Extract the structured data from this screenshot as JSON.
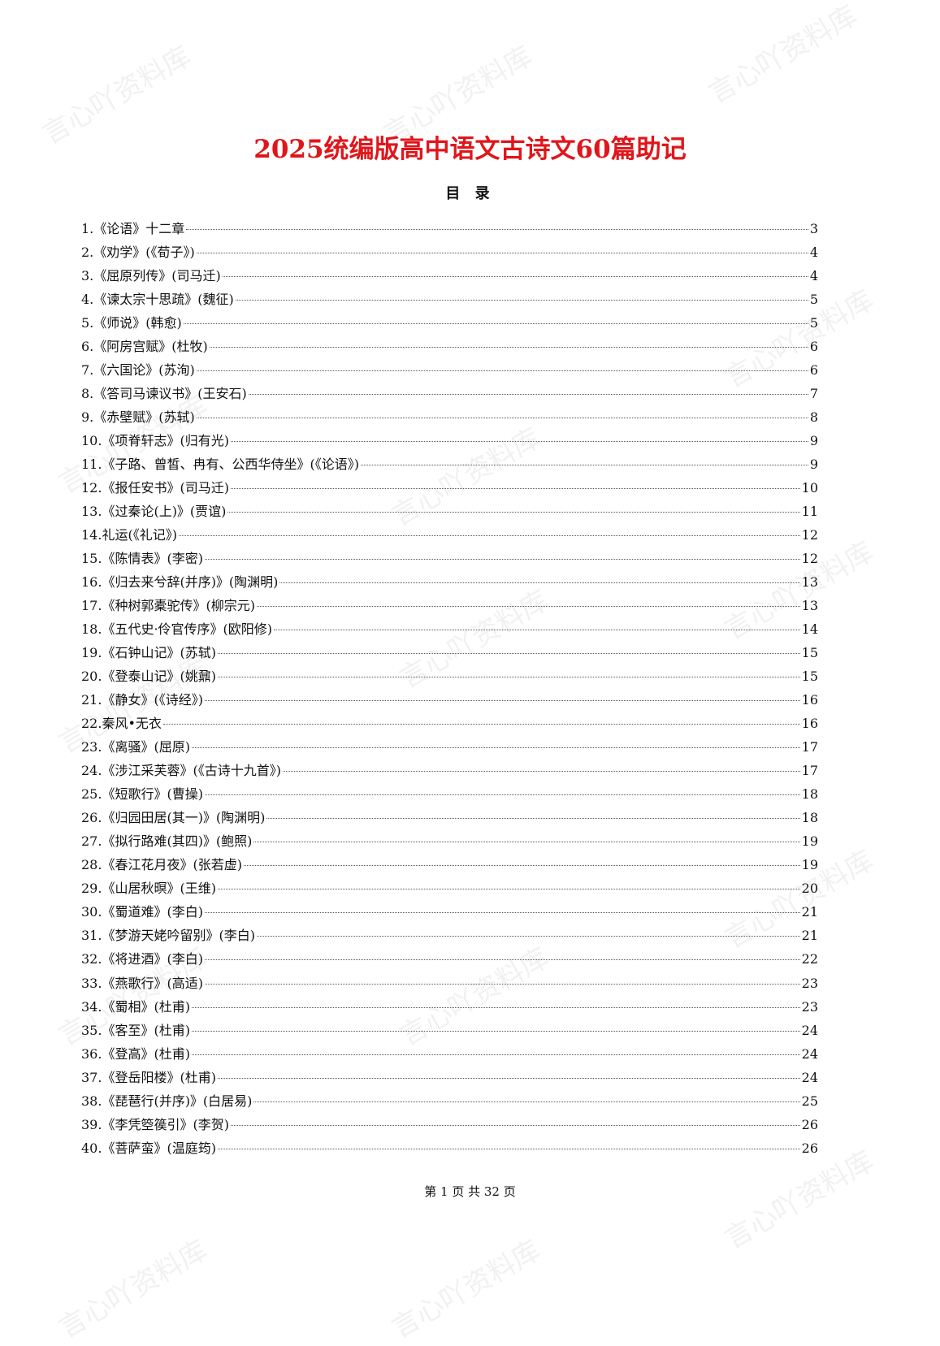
{
  "watermark": "言心吖资料库",
  "title": "2025统编版高中语文古诗文60篇助记",
  "toc_heading": "目 录",
  "toc": [
    {
      "t": "1.《论语》十二章",
      "p": "3"
    },
    {
      "t": "2.《劝学》(《荀子》)",
      "p": "4"
    },
    {
      "t": "3.《屈原列传》(司马迁)",
      "p": "4"
    },
    {
      "t": "4.《谏太宗十思疏》(魏征)",
      "p": "5"
    },
    {
      "t": "5.《师说》(韩愈)",
      "p": "5"
    },
    {
      "t": "6.《阿房宫赋》(杜牧)",
      "p": "6"
    },
    {
      "t": "7.《六国论》(苏洵)",
      "p": "6"
    },
    {
      "t": "8.《答司马谏议书》(王安石)",
      "p": "7"
    },
    {
      "t": "9.《赤壁赋》(苏轼)",
      "p": "8"
    },
    {
      "t": "10.《项脊轩志》(归有光)",
      "p": "9"
    },
    {
      "t": "11.《子路、曾皙、冉有、公西华侍坐》(《论语》)",
      "p": "9"
    },
    {
      "t": "12.《报任安书》(司马迁)",
      "p": "10"
    },
    {
      "t": "13.《过秦论(上)》(贾谊)",
      "p": "11"
    },
    {
      "t": "14.礼运(《礼记》)",
      "p": "12"
    },
    {
      "t": "15.《陈情表》(李密)",
      "p": "12"
    },
    {
      "t": "16.《归去来兮辞(并序)》(陶渊明)",
      "p": "13"
    },
    {
      "t": "17.《种树郭橐驼传》(柳宗元)",
      "p": "13"
    },
    {
      "t": "18.《五代史·伶官传序》(欧阳修)",
      "p": "14"
    },
    {
      "t": "19.《石钟山记》(苏轼)",
      "p": "15"
    },
    {
      "t": "20.《登泰山记》(姚鼐)",
      "p": "15"
    },
    {
      "t": "21.《静女》(《诗经》)",
      "p": "16"
    },
    {
      "t": "22.秦风•无衣",
      "p": "16"
    },
    {
      "t": "23.《离骚》(屈原)",
      "p": "17"
    },
    {
      "t": "24.《涉江采芙蓉》(《古诗十九首》)",
      "p": "17"
    },
    {
      "t": "25.《短歌行》(曹操)",
      "p": "18"
    },
    {
      "t": "26.《归园田居(其一)》(陶渊明)",
      "p": "18"
    },
    {
      "t": "27.《拟行路难(其四)》(鲍照)",
      "p": "19"
    },
    {
      "t": "28.《春江花月夜》(张若虚)",
      "p": "19"
    },
    {
      "t": "29.《山居秋暝》(王维)",
      "p": "20"
    },
    {
      "t": "30.《蜀道难》(李白)",
      "p": "21"
    },
    {
      "t": "31.《梦游天姥吟留别》(李白)",
      "p": "21"
    },
    {
      "t": "32.《将进酒》(李白)",
      "p": "22"
    },
    {
      "t": "33.《燕歌行》(高适)",
      "p": "23"
    },
    {
      "t": "34.《蜀相》(杜甫)",
      "p": "23"
    },
    {
      "t": "35.《客至》(杜甫)",
      "p": "24"
    },
    {
      "t": "36.《登高》(杜甫)",
      "p": "24"
    },
    {
      "t": "37.《登岳阳楼》(杜甫)",
      "p": "24"
    },
    {
      "t": "38.《琵琶行(并序)》(白居易)",
      "p": "25"
    },
    {
      "t": "39.《李凭箜篌引》(李贺)",
      "p": "26"
    },
    {
      "t": "40.《菩萨蛮》(温庭筠)",
      "p": "26"
    }
  ],
  "footer": "第 1 页 共 32 页",
  "colors": {
    "title": "#e0161b",
    "text": "#111111"
  }
}
